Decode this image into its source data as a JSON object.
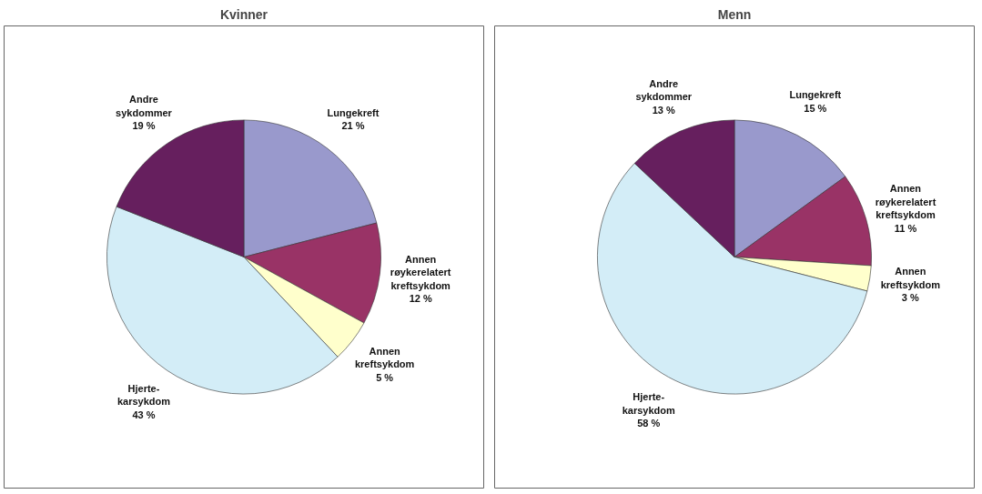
{
  "chart_data": [
    {
      "type": "pie",
      "title": "Kvinner",
      "categories": [
        "Lungekreft",
        "Annen røykerelatert kreftsykdom",
        "Annen kreftsykdom",
        "Hjerte-karsykdom",
        "Andre sykdommer"
      ],
      "values": [
        21,
        12,
        5,
        43,
        19
      ],
      "value_labels": [
        "21 %",
        "12 %",
        "5 %",
        "43 %",
        "19 %"
      ],
      "colors": [
        "#9999cc",
        "#993366",
        "#ffffcc",
        "#d3edf7",
        "#661f5e"
      ]
    },
    {
      "type": "pie",
      "title": "Menn",
      "categories": [
        "Lungekreft",
        "Annen røykerelatert kreftsykdom",
        "Annen kreftsykdom",
        "Hjerte-karsykdom",
        "Andre sykdommer"
      ],
      "values": [
        15,
        11,
        3,
        58,
        13
      ],
      "value_labels": [
        "15 %",
        "11 %",
        "3 %",
        "58 %",
        "13 %"
      ],
      "colors": [
        "#9999cc",
        "#993366",
        "#ffffcc",
        "#d3edf7",
        "#661f5e"
      ]
    }
  ]
}
